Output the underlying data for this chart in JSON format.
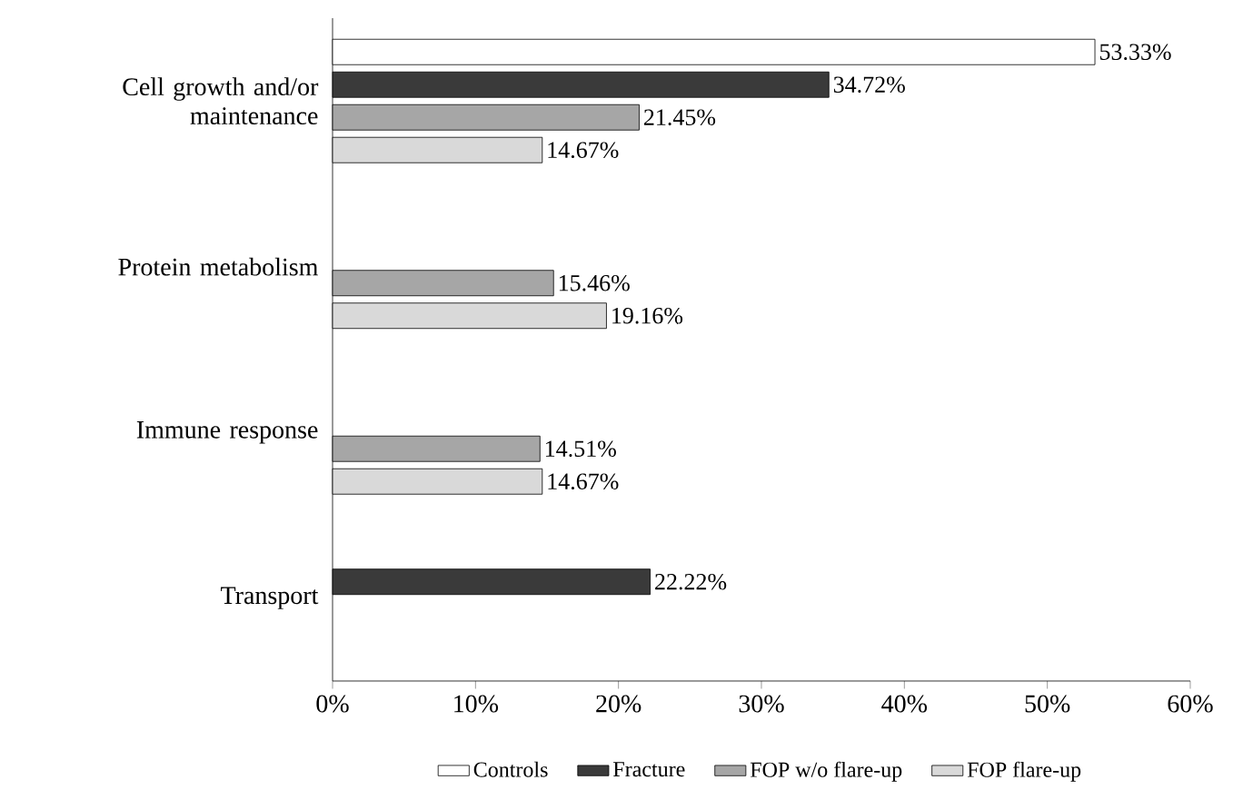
{
  "chart_data": {
    "type": "bar",
    "orientation": "horizontal",
    "categories": [
      "Cell growth and/or maintenance",
      "Protein metabolism",
      "Immune response",
      "Transport"
    ],
    "series": [
      {
        "name": "Controls",
        "color": "#ffffff",
        "values": [
          53.33,
          null,
          null,
          null
        ],
        "value_labels": [
          "53.33%",
          null,
          null,
          null
        ]
      },
      {
        "name": "Fracture",
        "color": "#3a3a3a",
        "values": [
          34.72,
          null,
          null,
          22.22
        ],
        "value_labels": [
          "34.72%",
          null,
          null,
          "22.22%"
        ]
      },
      {
        "name": "FOP w/o flare-up",
        "color": "#a6a6a6",
        "values": [
          21.45,
          15.46,
          14.51,
          null
        ],
        "value_labels": [
          "21.45%",
          "15.46%",
          "14.51%",
          null
        ]
      },
      {
        "name": "FOP flare-up",
        "color": "#d9d9d9",
        "values": [
          14.67,
          19.16,
          14.67,
          null
        ],
        "value_labels": [
          "14.67%",
          "19.16%",
          "14.67%",
          null
        ]
      }
    ],
    "xlim": [
      0,
      60
    ],
    "xticks": [
      {
        "value": 0,
        "label": "0%"
      },
      {
        "value": 10,
        "label": "10%"
      },
      {
        "value": 20,
        "label": "20%"
      },
      {
        "value": 30,
        "label": "30%"
      },
      {
        "value": 40,
        "label": "40%"
      },
      {
        "value": 50,
        "label": "50%"
      },
      {
        "value": 60,
        "label": "60%"
      }
    ],
    "legend": "bottom"
  }
}
